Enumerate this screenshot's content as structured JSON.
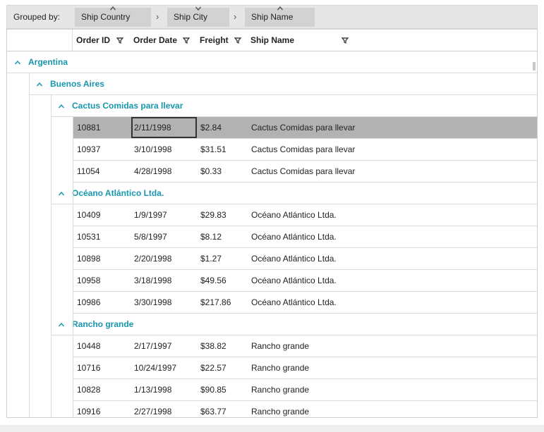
{
  "group_panel": {
    "label": "Grouped by:",
    "groups": [
      "Ship Country",
      "Ship City",
      "Ship Name"
    ]
  },
  "columns": [
    "Order ID",
    "Order Date",
    "Freight",
    "Ship Name"
  ],
  "groups": [
    {
      "name": "Argentina",
      "groups": [
        {
          "name": "Buenos Aires",
          "groups": [
            {
              "name": "Cactus Comidas para llevar",
              "rows": [
                [
                  "10881",
                  "2/11/1998",
                  "$2.84",
                  "Cactus Comidas para llevar"
                ],
                [
                  "10937",
                  "3/10/1998",
                  "$31.51",
                  "Cactus Comidas para llevar"
                ],
                [
                  "11054",
                  "4/28/1998",
                  "$0.33",
                  "Cactus Comidas para llevar"
                ]
              ]
            },
            {
              "name": "Océano Atlántico Ltda.",
              "rows": [
                [
                  "10409",
                  "1/9/1997",
                  "$29.83",
                  "Océano Atlántico Ltda."
                ],
                [
                  "10531",
                  "5/8/1997",
                  "$8.12",
                  "Océano Atlántico Ltda."
                ],
                [
                  "10898",
                  "2/20/1998",
                  "$1.27",
                  "Océano Atlántico Ltda."
                ],
                [
                  "10958",
                  "3/18/1998",
                  "$49.56",
                  "Océano Atlántico Ltda."
                ],
                [
                  "10986",
                  "3/30/1998",
                  "$217.86",
                  "Océano Atlántico Ltda."
                ]
              ]
            },
            {
              "name": "Rancho grande",
              "rows": [
                [
                  "10448",
                  "2/17/1997",
                  "$38.82",
                  "Rancho grande"
                ],
                [
                  "10716",
                  "10/24/1997",
                  "$22.57",
                  "Rancho grande"
                ],
                [
                  "10828",
                  "1/13/1998",
                  "$90.85",
                  "Rancho grande"
                ],
                [
                  "10916",
                  "2/27/1998",
                  "$63.77",
                  "Rancho grande"
                ]
              ]
            }
          ]
        }
      ]
    }
  ]
}
